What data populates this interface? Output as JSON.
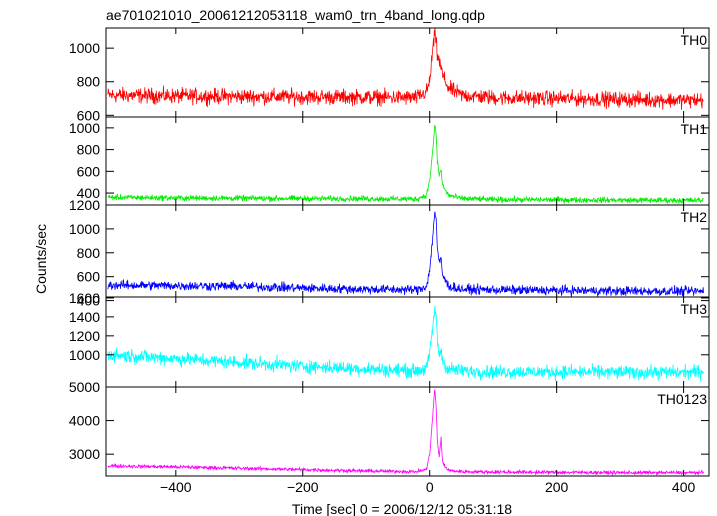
{
  "chart_data": {
    "type": "line",
    "title": "ae701021010_20061212053118_wam0_trn_4band_long.qdp",
    "xlabel": "Time [sec] 0 = 2006/12/12 05:31:18",
    "ylabel": "Counts/sec",
    "xlim": [
      -510,
      440
    ],
    "xticks": [
      -400,
      -200,
      0,
      200,
      400
    ],
    "grid": false,
    "legend": "none",
    "x_sampled": [
      -500,
      -400,
      -300,
      -200,
      -100,
      -20,
      -5,
      0,
      5,
      8,
      10,
      12,
      15,
      18,
      20,
      25,
      30,
      50,
      100,
      200,
      300,
      400,
      430
    ],
    "series": [
      {
        "name": "TH0",
        "color": "#ff0000",
        "ylim": [
          590,
          1120
        ],
        "yticks": [
          600,
          800,
          1000
        ],
        "noise": 35,
        "values": [
          720,
          715,
          712,
          710,
          708,
          705,
          740,
          800,
          1000,
          1080,
          1050,
          960,
          920,
          880,
          840,
          800,
          760,
          720,
          705,
          700,
          695,
          690,
          690
        ]
      },
      {
        "name": "TH1",
        "color": "#00ee00",
        "ylim": [
          290,
          1100
        ],
        "yticks": [
          400,
          600,
          800,
          1000
        ],
        "noise": 20,
        "values": [
          360,
          355,
          352,
          350,
          348,
          345,
          380,
          520,
          800,
          1020,
          960,
          700,
          560,
          620,
          480,
          420,
          380,
          350,
          340,
          338,
          335,
          333,
          333
        ]
      },
      {
        "name": "TH2",
        "color": "#0000ff",
        "ylim": [
          430,
          1200
        ],
        "yticks": [
          400,
          600,
          800,
          1000,
          1200
        ],
        "noise": 30,
        "values": [
          530,
          525,
          520,
          505,
          495,
          490,
          520,
          650,
          950,
          1150,
          1080,
          850,
          700,
          760,
          620,
          560,
          520,
          495,
          490,
          485,
          480,
          478,
          478
        ]
      },
      {
        "name": "TH3",
        "color": "#00ffff",
        "ylim": [
          660,
          1610
        ],
        "yticks": [
          1000,
          1200,
          1400,
          1600
        ],
        "noise": 55,
        "values": [
          1000,
          960,
          920,
          880,
          850,
          830,
          860,
          1000,
          1300,
          1500,
          1420,
          1150,
          1000,
          1050,
          950,
          880,
          850,
          830,
          820,
          820,
          815,
          815,
          820
        ]
      },
      {
        "name": "TH0123",
        "color": "#ff00ff",
        "ylim": [
          2350,
          5000
        ],
        "yticks": [
          3000,
          4000,
          5000
        ],
        "noise": 40,
        "values": [
          2650,
          2620,
          2580,
          2540,
          2500,
          2480,
          2550,
          3000,
          4200,
          4950,
          4500,
          3400,
          2900,
          3500,
          2800,
          2600,
          2520,
          2480,
          2470,
          2460,
          2450,
          2450,
          2450
        ]
      }
    ]
  }
}
